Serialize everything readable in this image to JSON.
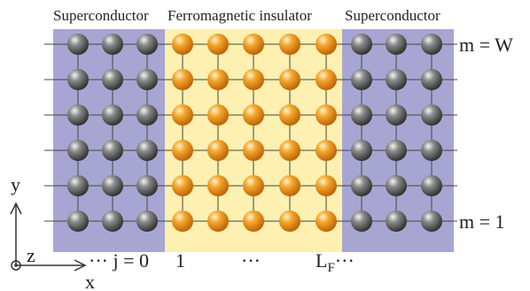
{
  "regions": [
    {
      "label": "Superconductor"
    },
    {
      "label": "Ferromagnetic insulator"
    },
    {
      "label": "Superconductor"
    }
  ],
  "row_labels": {
    "top": "m = W",
    "bottom": "m = 1"
  },
  "column_labels": {
    "first": "··· j = 0",
    "second": "1",
    "middle": "···",
    "last_main": "L",
    "last_sub": "F",
    "last_suffix": "···"
  },
  "axes": {
    "y": "y",
    "z": "z",
    "x": "x"
  }
}
